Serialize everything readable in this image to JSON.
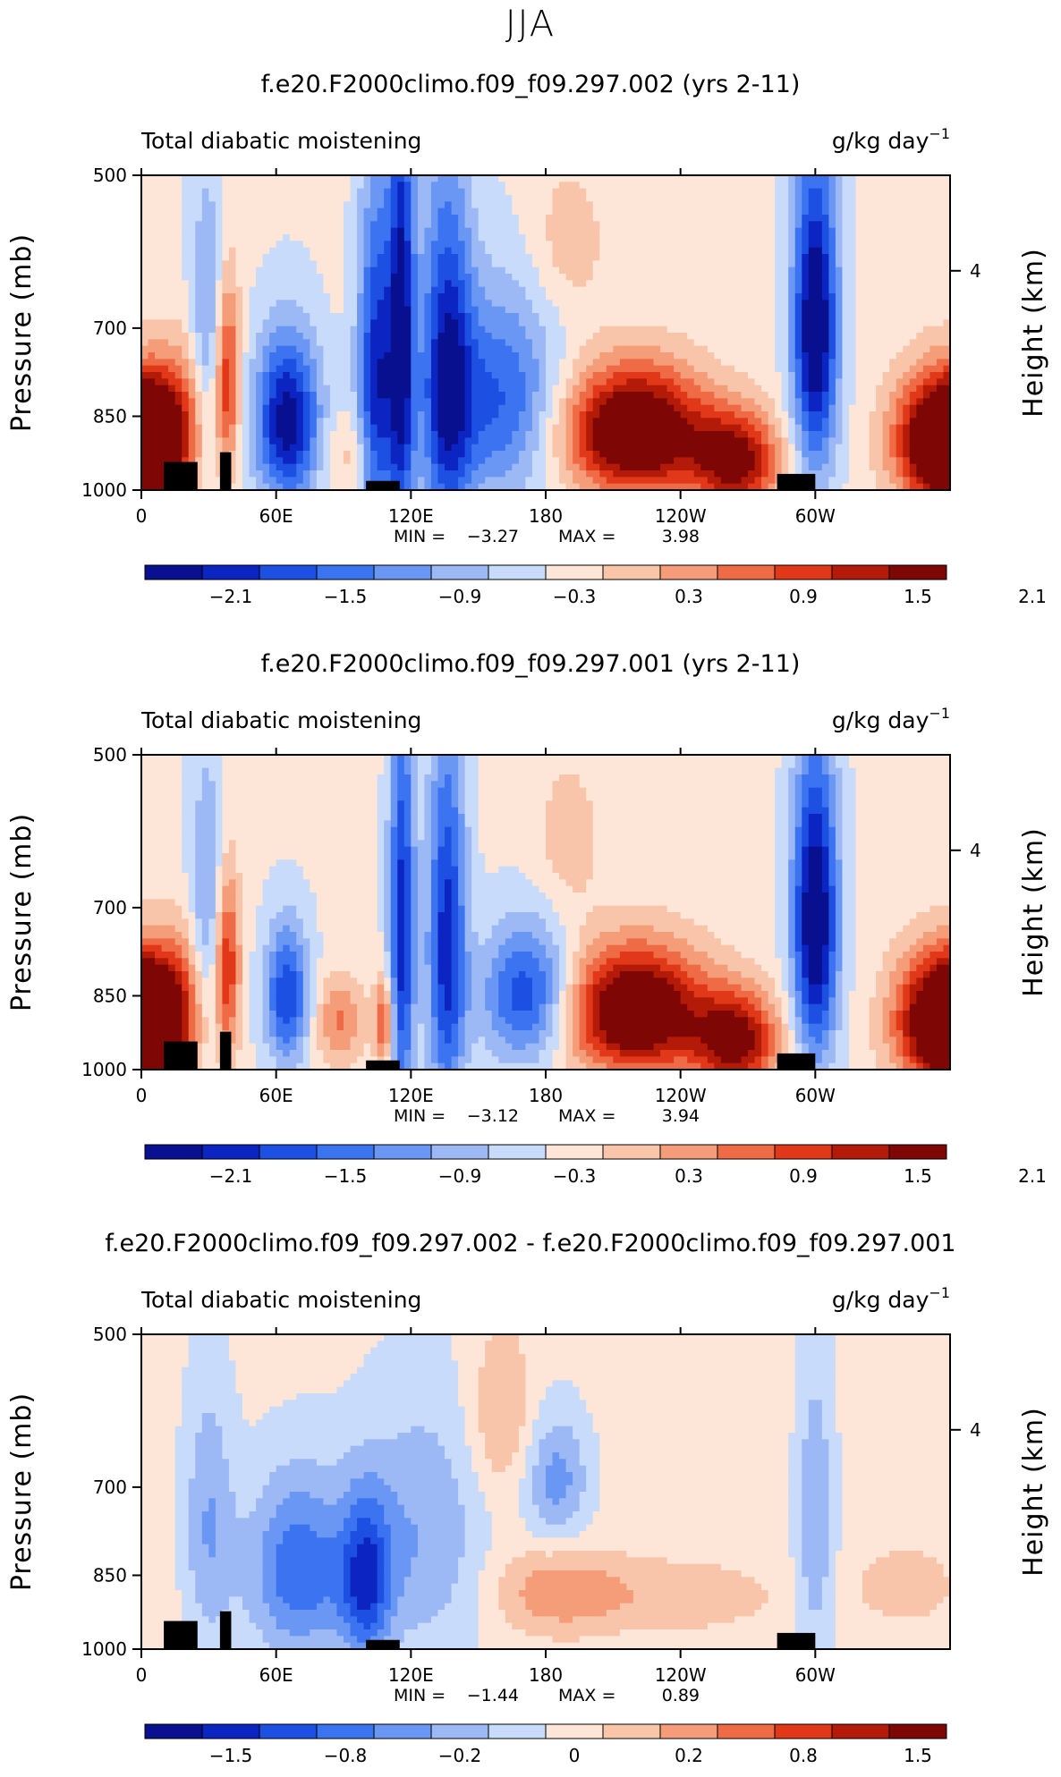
{
  "figure_title": "JJA",
  "chart_data": [
    {
      "type": "heatmap",
      "title": "f.e20.F2000climo.f09_f09.297.002 (yrs 2-11)",
      "subtitle_left": "Total diabatic moistening",
      "units": "g/kg day",
      "units_exp": "−1",
      "ylabel": "Pressure (mb)",
      "ylabel_right": "Height (km)",
      "y_ticks": [
        "500",
        "700",
        "850",
        "1000"
      ],
      "y_right_ticks": [
        "4"
      ],
      "x_ticks": [
        "0",
        "60E",
        "120E",
        "180",
        "120W",
        "60W"
      ],
      "ylim": [
        1000,
        500
      ],
      "min_label": "MIN =",
      "min_value": "−3.27",
      "max_label": "MAX =",
      "max_value": "3.98",
      "colorbar_labels": [
        "−2.1",
        "−1.5",
        "−0.9",
        "−0.3",
        "0.3",
        "0.9",
        "1.5",
        "2.1"
      ],
      "features": [
        {
          "lon": 65,
          "p": 860,
          "v": -2.4,
          "sx": 10,
          "sp": 110
        },
        {
          "lon": 105,
          "p": 800,
          "v": -2.1,
          "sx": 6,
          "sp": 220
        },
        {
          "lon": 116,
          "p": 720,
          "v": -2.2,
          "sx": 4,
          "sp": 260
        },
        {
          "lon": 136,
          "p": 780,
          "v": -2.0,
          "sx": 8,
          "sp": 220
        },
        {
          "lon": 160,
          "p": 820,
          "v": -1.5,
          "sx": 18,
          "sp": 130
        },
        {
          "lon": 300,
          "p": 700,
          "v": -2.7,
          "sx": 7,
          "sp": 170
        },
        {
          "lon": 30,
          "p": 720,
          "v": -1.0,
          "sx": 6,
          "sp": 160
        },
        {
          "lon": 220,
          "p": 880,
          "v": 3.0,
          "sx": 22,
          "sp": 85
        },
        {
          "lon": 265,
          "p": 940,
          "v": 2.2,
          "sx": 13,
          "sp": 70
        },
        {
          "lon": 355,
          "p": 900,
          "v": 3.0,
          "sx": 14,
          "sp": 90
        },
        {
          "lon": 5,
          "p": 910,
          "v": 2.3,
          "sx": 8,
          "sp": 85
        },
        {
          "lon": 38,
          "p": 780,
          "v": 1.8,
          "sx": 4,
          "sp": 120
        },
        {
          "lon": 20,
          "p": 850,
          "v": 1.0,
          "sx": 8,
          "sp": 100
        },
        {
          "lon": 95,
          "p": 930,
          "v": 0.5,
          "sx": 10,
          "sp": 60
        },
        {
          "lon": 190,
          "p": 580,
          "v": 0.5,
          "sx": 12,
          "sp": 70
        }
      ],
      "terrain": [
        [
          10,
          960
        ],
        [
          25,
          940
        ],
        [
          35,
          920
        ],
        [
          40,
          970
        ],
        [
          100,
          980
        ],
        [
          115,
          980
        ],
        [
          283,
          965
        ],
        [
          300,
          975
        ]
      ]
    },
    {
      "type": "heatmap",
      "title": "f.e20.F2000climo.f09_f09.297.001 (yrs 2-11)",
      "subtitle_left": "Total diabatic moistening",
      "units": "g/kg day",
      "units_exp": "−1",
      "ylabel": "Pressure (mb)",
      "ylabel_right": "Height (km)",
      "y_ticks": [
        "500",
        "700",
        "850",
        "1000"
      ],
      "y_right_ticks": [
        "4"
      ],
      "x_ticks": [
        "0",
        "60E",
        "120E",
        "180",
        "120W",
        "60W"
      ],
      "ylim": [
        1000,
        500
      ],
      "min_label": "MIN =",
      "min_value": "−3.12",
      "max_label": "MAX =",
      "max_value": "3.94",
      "colorbar_labels": [
        "−2.1",
        "−1.5",
        "−0.9",
        "−0.3",
        "0.3",
        "0.9",
        "1.5",
        "2.1"
      ],
      "features": [
        {
          "lon": 65,
          "p": 850,
          "v": -1.8,
          "sx": 7,
          "sp": 90
        },
        {
          "lon": 116,
          "p": 740,
          "v": -2.0,
          "sx": 4,
          "sp": 240
        },
        {
          "lon": 136,
          "p": 760,
          "v": -2.0,
          "sx": 6,
          "sp": 220
        },
        {
          "lon": 172,
          "p": 850,
          "v": -1.8,
          "sx": 14,
          "sp": 90
        },
        {
          "lon": 300,
          "p": 720,
          "v": -2.7,
          "sx": 7,
          "sp": 170
        },
        {
          "lon": 30,
          "p": 720,
          "v": -1.0,
          "sx": 6,
          "sp": 160
        },
        {
          "lon": 220,
          "p": 880,
          "v": 2.9,
          "sx": 22,
          "sp": 85
        },
        {
          "lon": 265,
          "p": 940,
          "v": 2.2,
          "sx": 13,
          "sp": 70
        },
        {
          "lon": 355,
          "p": 900,
          "v": 2.9,
          "sx": 14,
          "sp": 90
        },
        {
          "lon": 5,
          "p": 910,
          "v": 2.3,
          "sx": 8,
          "sp": 85
        },
        {
          "lon": 38,
          "p": 790,
          "v": 1.8,
          "sx": 4,
          "sp": 120
        },
        {
          "lon": 20,
          "p": 860,
          "v": 1.0,
          "sx": 8,
          "sp": 100
        },
        {
          "lon": 88,
          "p": 900,
          "v": 1.0,
          "sx": 8,
          "sp": 60
        },
        {
          "lon": 108,
          "p": 900,
          "v": 1.4,
          "sx": 3,
          "sp": 60
        },
        {
          "lon": 190,
          "p": 600,
          "v": 0.5,
          "sx": 10,
          "sp": 70
        }
      ],
      "terrain": [
        [
          10,
          960
        ],
        [
          25,
          940
        ],
        [
          35,
          920
        ],
        [
          40,
          970
        ],
        [
          100,
          980
        ],
        [
          115,
          980
        ],
        [
          283,
          965
        ],
        [
          300,
          975
        ]
      ]
    },
    {
      "type": "heatmap",
      "title": "f.e20.F2000climo.f09_f09.297.002 - f.e20.F2000climo.f09_f09.297.001",
      "subtitle_left": "Total diabatic moistening",
      "units": "g/kg day",
      "units_exp": "−1",
      "ylabel": "Pressure (mb)",
      "ylabel_right": "Height (km)",
      "y_ticks": [
        "500",
        "700",
        "850",
        "1000"
      ],
      "y_right_ticks": [
        "4"
      ],
      "x_ticks": [
        "0",
        "60E",
        "120E",
        "180",
        "120W",
        "60W"
      ],
      "ylim": [
        1000,
        500
      ],
      "min_label": "MIN =",
      "min_value": "−1.44",
      "max_label": "MAX =",
      "max_value": "0.89",
      "colorbar_labels": [
        "−1.5",
        "−0.8",
        "−0.2",
        "0",
        "0.2",
        "0.8",
        "1.5"
      ],
      "features": [
        {
          "lon": 70,
          "p": 840,
          "v": -0.9,
          "sx": 16,
          "sp": 120
        },
        {
          "lon": 100,
          "p": 860,
          "v": -1.0,
          "sx": 8,
          "sp": 110
        },
        {
          "lon": 30,
          "p": 760,
          "v": -0.5,
          "sx": 8,
          "sp": 160
        },
        {
          "lon": 125,
          "p": 780,
          "v": -0.5,
          "sx": 20,
          "sp": 160
        },
        {
          "lon": 185,
          "p": 690,
          "v": -0.6,
          "sx": 10,
          "sp": 70
        },
        {
          "lon": 300,
          "p": 760,
          "v": -0.5,
          "sx": 6,
          "sp": 180
        },
        {
          "lon": 160,
          "p": 600,
          "v": 0.4,
          "sx": 10,
          "sp": 80
        },
        {
          "lon": 185,
          "p": 880,
          "v": 0.5,
          "sx": 20,
          "sp": 60
        },
        {
          "lon": 240,
          "p": 890,
          "v": 0.3,
          "sx": 30,
          "sp": 50
        },
        {
          "lon": 340,
          "p": 870,
          "v": 0.3,
          "sx": 15,
          "sp": 50
        }
      ],
      "terrain": [
        [
          10,
          960
        ],
        [
          25,
          940
        ],
        [
          35,
          920
        ],
        [
          40,
          970
        ],
        [
          100,
          980
        ],
        [
          115,
          980
        ],
        [
          283,
          965
        ],
        [
          300,
          975
        ]
      ]
    }
  ],
  "colors": {
    "colorbar": [
      "#08108f",
      "#0c25c2",
      "#1d4fe2",
      "#3b73f0",
      "#6a96f4",
      "#9cb9f5",
      "#c8dbfa",
      "#fde6d7",
      "#f8c4aa",
      "#f49d78",
      "#ef6b45",
      "#e03818",
      "#b31a08",
      "#7e0605"
    ],
    "terrain": "#000000"
  }
}
